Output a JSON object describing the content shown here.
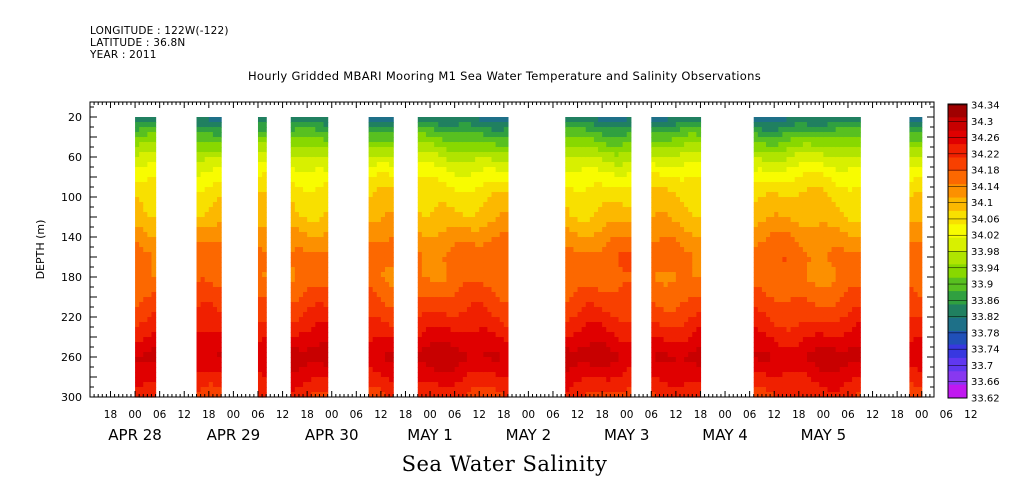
{
  "header": {
    "longitude": "LONGITUDE : 122W(-122)",
    "latitude": "LATITUDE : 36.8N",
    "year": "YEAR : 2011"
  },
  "chart_data": {
    "type": "heatmap",
    "title": "Hourly Gridded MBARI Mooring M1 Sea Water Temperature and Salinity Observations",
    "caption": "Sea Water Salinity",
    "ylabel": "DEPTH (m)",
    "xlabel": "",
    "x_unit": "hours since APR 28 00:00, 2011",
    "xlim": [
      -11,
      195
    ],
    "ylim": [
      300,
      5
    ],
    "y_ticks": [
      20,
      60,
      100,
      140,
      180,
      220,
      260,
      300
    ],
    "x_tick_labels": [
      "18",
      "00",
      "06",
      "12",
      "18",
      "00",
      "06",
      "12",
      "18",
      "00",
      "06",
      "12",
      "18",
      "00",
      "06",
      "12",
      "18",
      "00",
      "06",
      "12",
      "18",
      "00",
      "06",
      "12",
      "18",
      "00",
      "06",
      "12",
      "18",
      "00",
      "06",
      "12",
      "18",
      "00",
      "06",
      "12"
    ],
    "date_labels": [
      "APR 28",
      "APR 29",
      "APR 30",
      "MAY  1",
      "MAY  2",
      "MAY  3",
      "MAY  4",
      "MAY  5"
    ],
    "date_hours": [
      0,
      24,
      48,
      72,
      96,
      120,
      144,
      168
    ],
    "colorbar_levels": [
      "34.34",
      "34.3",
      "34.26",
      "34.22",
      "34.18",
      "34.14",
      "34.1",
      "34.06",
      "34.02",
      "33.98",
      "33.94",
      "33.9",
      "33.86",
      "33.82",
      "33.78",
      "33.74",
      "33.7",
      "33.66",
      "33.62"
    ],
    "colorbar_colors": [
      "#a00000",
      "#c80000",
      "#e00000",
      "#f02000",
      "#f84000",
      "#fc6800",
      "#fc9000",
      "#fcb800",
      "#f8e000",
      "#f8fc00",
      "#d8f000",
      "#b0e400",
      "#88d800",
      "#58c020",
      "#30a040",
      "#208060",
      "#1e7088",
      "#2050b8",
      "#3838e0",
      "#6038f0",
      "#8838f0",
      "#c018f0"
    ],
    "data_blocks_hours": [
      [
        0,
        5
      ],
      [
        15,
        21
      ],
      [
        30,
        32
      ],
      [
        38,
        47
      ],
      [
        57,
        63
      ],
      [
        69,
        91
      ],
      [
        105,
        121
      ],
      [
        126,
        138
      ],
      [
        151,
        177
      ],
      [
        189,
        192
      ]
    ],
    "depth_profiles": {
      "depths": [
        20,
        40,
        60,
        80,
        100,
        120,
        140,
        160,
        180,
        200,
        220,
        240,
        260,
        280,
        300
      ],
      "salinity": [
        33.8,
        33.9,
        33.98,
        34.04,
        34.08,
        34.1,
        34.14,
        34.17,
        34.16,
        34.19,
        34.22,
        34.26,
        34.3,
        34.26,
        34.22
      ]
    }
  }
}
